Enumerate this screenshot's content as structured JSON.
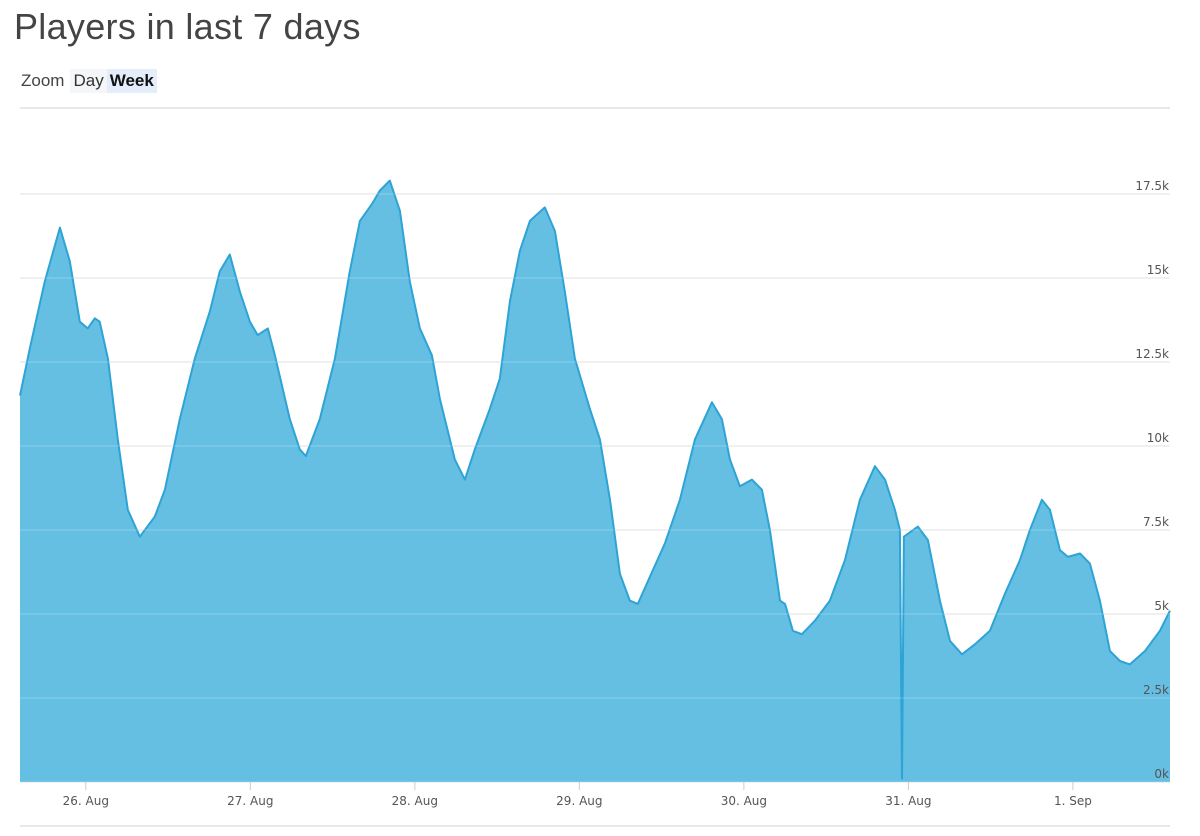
{
  "header": {
    "title": "Players in last 7 days"
  },
  "zoom": {
    "label": "Zoom",
    "options": [
      "Day",
      "Week"
    ],
    "selected": "Week"
  },
  "colors": {
    "fill": "#64bfe3",
    "line": "#2ea3d5",
    "grid": "#d9d9d9"
  },
  "chart_data": {
    "type": "area",
    "title": "Players in last 7 days",
    "xlabel": "",
    "ylabel": "",
    "ylim": [
      0,
      20000
    ],
    "grid": true,
    "x_tick_labels": [
      "26. Aug",
      "27. Aug",
      "28. Aug",
      "29. Aug",
      "30. Aug",
      "31. Aug",
      "1. Sep"
    ],
    "x_ticks": [
      "08-26T00:00",
      "08-27T00:00",
      "08-28T00:00",
      "08-29T00:00",
      "08-30T00:00",
      "08-31T00:00",
      "09-01T00:00"
    ],
    "y_ticks": [
      0,
      2500,
      5000,
      7500,
      10000,
      12500,
      15000,
      17500
    ],
    "y_tick_labels": [
      "0k",
      "2.5k",
      "5k",
      "7.5k",
      "10k",
      "12.5k",
      "15k",
      "17.5k"
    ],
    "points": [
      [
        "08-25T14:24",
        11500
      ],
      [
        "08-25T15:50",
        12900
      ],
      [
        "08-25T18:01",
        14900
      ],
      [
        "08-25T20:13",
        16500
      ],
      [
        "08-25T21:40",
        15500
      ],
      [
        "08-25T23:07",
        13700
      ],
      [
        "08-26T00:17",
        13500
      ],
      [
        "08-26T01:19",
        13800
      ],
      [
        "08-26T02:02",
        13700
      ],
      [
        "08-26T03:13",
        12600
      ],
      [
        "08-26T04:40",
        10200
      ],
      [
        "08-26T06:08",
        8100
      ],
      [
        "08-26T07:53",
        7300
      ],
      [
        "08-26T10:04",
        7900
      ],
      [
        "08-26T11:32",
        8700
      ],
      [
        "08-26T13:43",
        10800
      ],
      [
        "08-26T15:54",
        12600
      ],
      [
        "08-26T18:05",
        14000
      ],
      [
        "08-26T19:33",
        15200
      ],
      [
        "08-26T21:00",
        15700
      ],
      [
        "08-26T22:28",
        14600
      ],
      [
        "08-26T23:56",
        13700
      ],
      [
        "08-27T01:05",
        13300
      ],
      [
        "08-27T02:33",
        13500
      ],
      [
        "08-27T03:35",
        12700
      ],
      [
        "08-27T05:46",
        10800
      ],
      [
        "08-27T07:13",
        9900
      ],
      [
        "08-27T08:06",
        9700
      ],
      [
        "08-27T10:08",
        10800
      ],
      [
        "08-27T12:20",
        12600
      ],
      [
        "08-27T14:31",
        15200
      ],
      [
        "08-27T15:59",
        16700
      ],
      [
        "08-27T17:44",
        17200
      ],
      [
        "08-27T18:53",
        17600
      ],
      [
        "08-27T20:21",
        17900
      ],
      [
        "08-27T21:49",
        17000
      ],
      [
        "08-27T23:16",
        14900
      ],
      [
        "08-28T00:44",
        13500
      ],
      [
        "08-28T02:29",
        12700
      ],
      [
        "08-28T03:39",
        11400
      ],
      [
        "08-28T05:50",
        9600
      ],
      [
        "08-28T07:18",
        9000
      ],
      [
        "08-28T08:45",
        9900
      ],
      [
        "08-28T10:56",
        11100
      ],
      [
        "08-28T12:24",
        12000
      ],
      [
        "08-28T13:52",
        14300
      ],
      [
        "08-28T15:19",
        15800
      ],
      [
        "08-28T16:47",
        16700
      ],
      [
        "08-28T18:58",
        17100
      ],
      [
        "08-28T20:26",
        16400
      ],
      [
        "08-28T21:53",
        14600
      ],
      [
        "08-28T23:21",
        12600
      ],
      [
        "08-29T01:32",
        11100
      ],
      [
        "08-29T03:00",
        10200
      ],
      [
        "08-29T04:28",
        8400
      ],
      [
        "08-29T05:55",
        6200
      ],
      [
        "08-29T07:22",
        5400
      ],
      [
        "08-29T08:32",
        5300
      ],
      [
        "08-29T10:17",
        6100
      ],
      [
        "08-29T12:29",
        7100
      ],
      [
        "08-29T14:40",
        8400
      ],
      [
        "08-29T16:52",
        10200
      ],
      [
        "08-29T19:20",
        11300
      ],
      [
        "08-29T20:48",
        10800
      ],
      [
        "08-29T21:58",
        9600
      ],
      [
        "08-29T23:25",
        8800
      ],
      [
        "08-30T01:10",
        9000
      ],
      [
        "08-30T02:38",
        8700
      ],
      [
        "08-30T03:48",
        7500
      ],
      [
        "08-30T05:16",
        5400
      ],
      [
        "08-30T06:00",
        5300
      ],
      [
        "08-30T07:09",
        4500
      ],
      [
        "08-30T08:28",
        4400
      ],
      [
        "08-30T10:22",
        4800
      ],
      [
        "08-30T12:33",
        5400
      ],
      [
        "08-30T14:44",
        6600
      ],
      [
        "08-30T16:56",
        8400
      ],
      [
        "08-30T19:07",
        9400
      ],
      [
        "08-30T20:35",
        9000
      ],
      [
        "08-30T22:02",
        8100
      ],
      [
        "08-30T22:46",
        7500
      ],
      [
        "08-30T23:04",
        100
      ],
      [
        "08-30T23:21",
        7300
      ],
      [
        "08-31T01:23",
        7600
      ],
      [
        "08-31T02:51",
        7200
      ],
      [
        "08-31T04:36",
        5400
      ],
      [
        "08-31T06:04",
        4200
      ],
      [
        "08-31T07:49",
        3800
      ],
      [
        "08-31T09:43",
        4100
      ],
      [
        "08-31T11:54",
        4500
      ],
      [
        "08-31T14:05",
        5600
      ],
      [
        "08-31T16:16",
        6600
      ],
      [
        "08-31T17:44",
        7500
      ],
      [
        "08-31T19:29",
        8400
      ],
      [
        "08-31T20:39",
        8100
      ],
      [
        "08-31T22:07",
        6900
      ],
      [
        "08-31T23:16",
        6700
      ],
      [
        "09-01T01:02",
        6800
      ],
      [
        "09-01T02:29",
        6500
      ],
      [
        "09-01T03:56",
        5400
      ],
      [
        "09-01T05:24",
        3900
      ],
      [
        "09-01T06:52",
        3600
      ],
      [
        "09-01T08:19",
        3500
      ],
      [
        "09-01T10:31",
        3900
      ],
      [
        "09-01T12:42",
        4500
      ],
      [
        "09-01T14:10",
        5100
      ]
    ]
  }
}
